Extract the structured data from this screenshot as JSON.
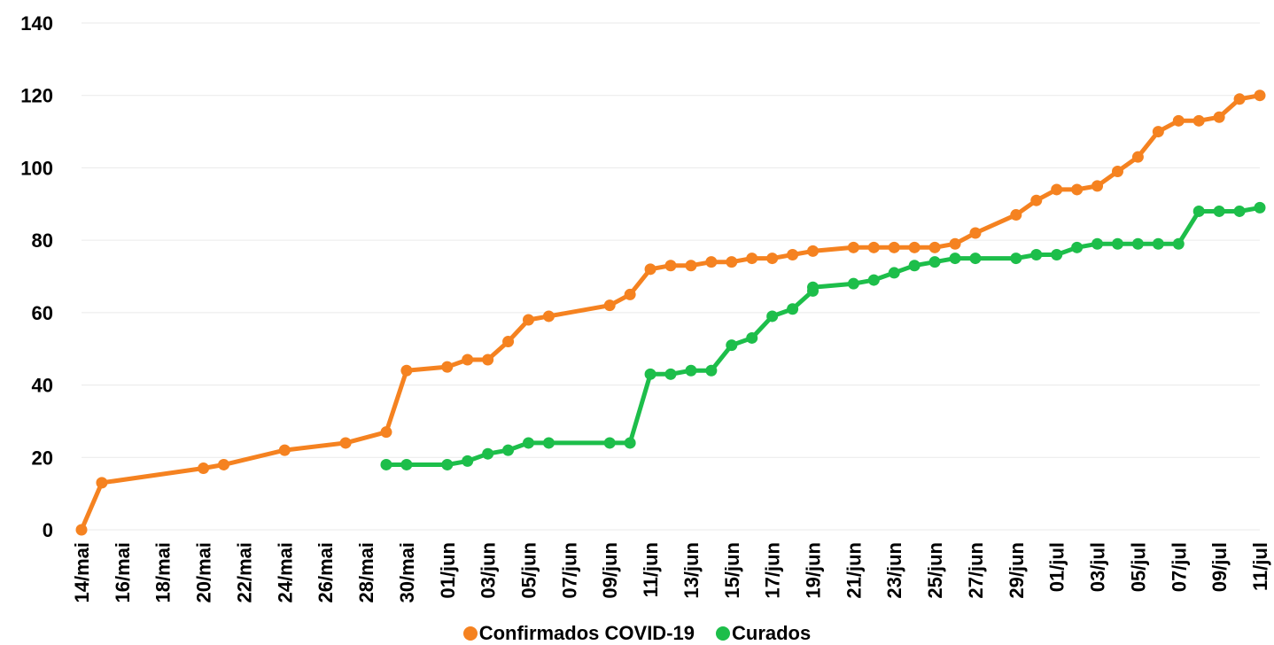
{
  "chart_data": {
    "type": "line",
    "title": "",
    "xlabel": "",
    "ylabel": "",
    "ylim": [
      0,
      140
    ],
    "y_ticks": [
      0,
      20,
      40,
      60,
      80,
      100,
      120,
      140
    ],
    "x_range_day_index": [
      0,
      58
    ],
    "x_tick_labels": [
      "14/mai",
      "16/mai",
      "18/mai",
      "20/mai",
      "22/mai",
      "24/mai",
      "26/mai",
      "28/mai",
      "30/mai",
      "01/jun",
      "03/jun",
      "05/jun",
      "07/jun",
      "09/jun",
      "11/jun",
      "13/jun",
      "15/jun",
      "17/jun",
      "19/jun",
      "21/jun",
      "23/jun",
      "25/jun",
      "27/jun",
      "29/jun",
      "01/jul",
      "03/jul",
      "05/jul",
      "07/jul",
      "09/jul",
      "11/jul"
    ],
    "grid": true,
    "legend_position": "bottom",
    "series": [
      {
        "name": "Confirmados COVID-19",
        "color": "#F58220",
        "points": [
          {
            "x": "14/mai",
            "y": 0
          },
          {
            "x": "15/mai",
            "y": 13
          },
          {
            "x": "20/mai",
            "y": 17
          },
          {
            "x": "21/mai",
            "y": 18
          },
          {
            "x": "24/mai",
            "y": 22
          },
          {
            "x": "27/mai",
            "y": 24
          },
          {
            "x": "29/mai",
            "y": 27
          },
          {
            "x": "30/mai",
            "y": 44
          },
          {
            "x": "01/jun",
            "y": 45
          },
          {
            "x": "02/jun",
            "y": 47
          },
          {
            "x": "03/jun",
            "y": 47
          },
          {
            "x": "04/jun",
            "y": 52
          },
          {
            "x": "05/jun",
            "y": 58
          },
          {
            "x": "06/jun",
            "y": 59
          },
          {
            "x": "09/jun",
            "y": 62
          },
          {
            "x": "10/jun",
            "y": 65
          },
          {
            "x": "11/jun",
            "y": 72
          },
          {
            "x": "12/jun",
            "y": 73
          },
          {
            "x": "13/jun",
            "y": 73
          },
          {
            "x": "14/jun",
            "y": 74
          },
          {
            "x": "15/jun",
            "y": 74
          },
          {
            "x": "16/jun",
            "y": 75
          },
          {
            "x": "17/jun",
            "y": 75
          },
          {
            "x": "18/jun",
            "y": 76
          },
          {
            "x": "19/jun",
            "y": 77
          },
          {
            "x": "21/jun",
            "y": 78
          },
          {
            "x": "22/jun",
            "y": 78
          },
          {
            "x": "23/jun",
            "y": 78
          },
          {
            "x": "24/jun",
            "y": 78
          },
          {
            "x": "25/jun",
            "y": 78
          },
          {
            "x": "26/jun",
            "y": 79
          },
          {
            "x": "27/jun",
            "y": 82
          },
          {
            "x": "29/jun",
            "y": 87
          },
          {
            "x": "30/jun",
            "y": 91
          },
          {
            "x": "01/jul",
            "y": 94
          },
          {
            "x": "02/jul",
            "y": 94
          },
          {
            "x": "03/jul",
            "y": 95
          },
          {
            "x": "04/jul",
            "y": 99
          },
          {
            "x": "05/jul",
            "y": 103
          },
          {
            "x": "06/jul",
            "y": 110
          },
          {
            "x": "07/jul",
            "y": 113
          },
          {
            "x": "08/jul",
            "y": 113
          },
          {
            "x": "09/jul",
            "y": 114
          },
          {
            "x": "10/jul",
            "y": 119
          },
          {
            "x": "11/jul",
            "y": 120
          }
        ]
      },
      {
        "name": "Curados",
        "color": "#1DBE4A",
        "points": [
          {
            "x": "29/mai",
            "y": 18
          },
          {
            "x": "30/mai",
            "y": 18
          },
          {
            "x": "01/jun",
            "y": 18
          },
          {
            "x": "02/jun",
            "y": 19
          },
          {
            "x": "03/jun",
            "y": 21
          },
          {
            "x": "04/jun",
            "y": 22
          },
          {
            "x": "05/jun",
            "y": 24
          },
          {
            "x": "06/jun",
            "y": 24
          },
          {
            "x": "09/jun",
            "y": 24
          },
          {
            "x": "10/jun",
            "y": 24
          },
          {
            "x": "11/jun",
            "y": 43
          },
          {
            "x": "12/jun",
            "y": 43
          },
          {
            "x": "13/jun",
            "y": 44
          },
          {
            "x": "14/jun",
            "y": 44
          },
          {
            "x": "15/jun",
            "y": 51
          },
          {
            "x": "16/jun",
            "y": 53
          },
          {
            "x": "17/jun",
            "y": 59
          },
          {
            "x": "18/jun",
            "y": 61
          },
          {
            "x": "19/jun",
            "y": 66
          },
          {
            "x": "19/jun",
            "y": 67
          },
          {
            "x": "21/jun",
            "y": 68
          },
          {
            "x": "22/jun",
            "y": 69
          },
          {
            "x": "23/jun",
            "y": 71
          },
          {
            "x": "24/jun",
            "y": 73
          },
          {
            "x": "25/jun",
            "y": 74
          },
          {
            "x": "26/jun",
            "y": 75
          },
          {
            "x": "27/jun",
            "y": 75
          },
          {
            "x": "29/jun",
            "y": 75
          },
          {
            "x": "30/jun",
            "y": 76
          },
          {
            "x": "01/jul",
            "y": 76
          },
          {
            "x": "02/jul",
            "y": 78
          },
          {
            "x": "03/jul",
            "y": 79
          },
          {
            "x": "04/jul",
            "y": 79
          },
          {
            "x": "05/jul",
            "y": 79
          },
          {
            "x": "06/jul",
            "y": 79
          },
          {
            "x": "07/jul",
            "y": 79
          },
          {
            "x": "08/jul",
            "y": 88
          },
          {
            "x": "09/jul",
            "y": 88
          },
          {
            "x": "10/jul",
            "y": 88
          },
          {
            "x": "11/jul",
            "y": 89
          }
        ]
      }
    ]
  }
}
